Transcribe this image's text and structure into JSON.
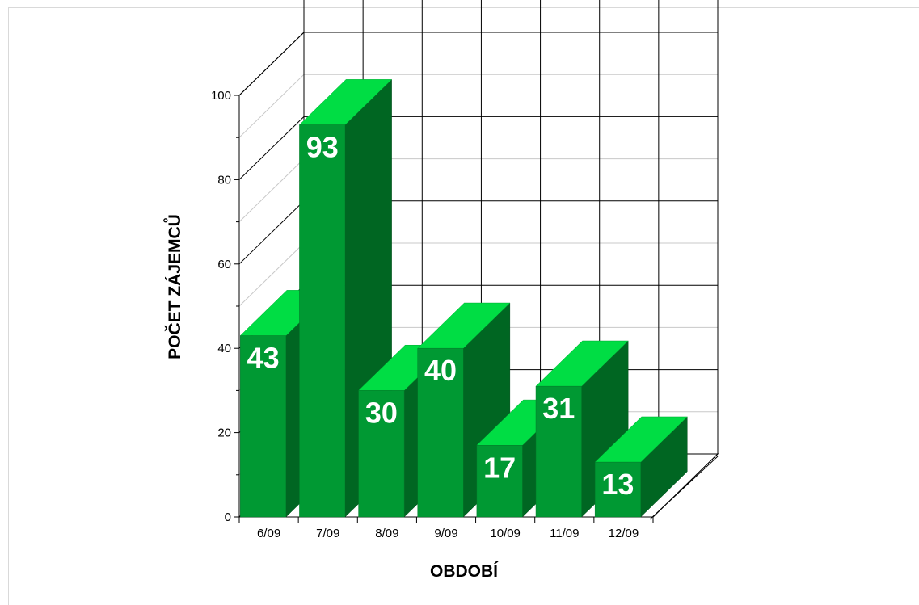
{
  "chart_data": {
    "type": "bar",
    "style": "3d",
    "categories": [
      "6/09",
      "7/09",
      "8/09",
      "9/09",
      "10/09",
      "11/09",
      "12/09"
    ],
    "values": [
      43,
      93,
      30,
      40,
      17,
      31,
      13
    ],
    "yticks": [
      "0",
      "20",
      "40",
      "60",
      "80",
      "100"
    ],
    "ylim": [
      0,
      100
    ],
    "xlabel": "OBDOBÍ",
    "ylabel": "POČET ZÁJEMCŮ",
    "grid": true,
    "legend": "none",
    "colors": {
      "bar_front": "#009933",
      "bar_top": "#00dd44",
      "bar_side": "#006622"
    }
  }
}
